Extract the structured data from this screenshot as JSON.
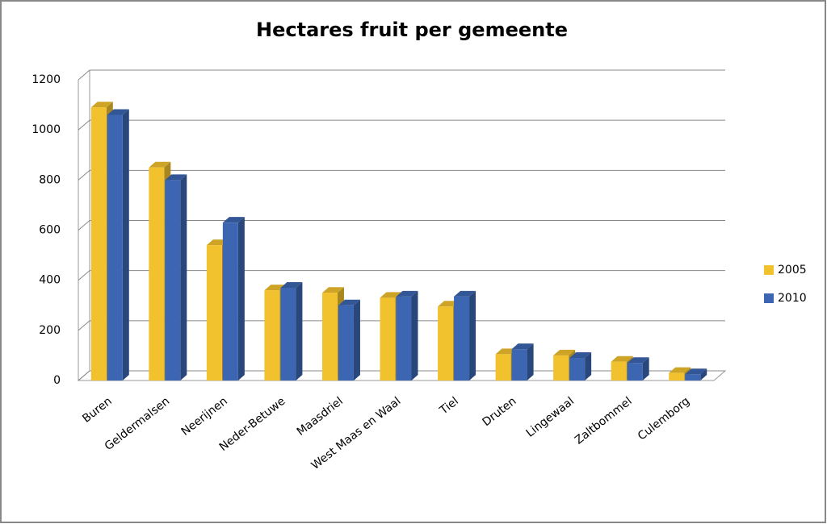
{
  "chart_data": {
    "type": "bar3d",
    "title": "Hectares fruit per gemeente",
    "categories": [
      "Buren",
      "Geldermalsen",
      "Neerijnen",
      "Neder-Betuwe",
      "Maasdriel",
      "West Maas en Waal",
      "Tiel",
      "Druten",
      "Lingewaal",
      "Zaltbommel",
      "Culemborg"
    ],
    "series": [
      {
        "name": "2005",
        "color": "#f2c12e",
        "values": [
          1090,
          850,
          540,
          360,
          350,
          330,
          295,
          105,
          100,
          75,
          30
        ]
      },
      {
        "name": "2010",
        "color": "#3c66b1",
        "values": [
          1060,
          800,
          630,
          370,
          300,
          335,
          335,
          125,
          90,
          70,
          25
        ]
      }
    ],
    "ylim": [
      0,
      1200
    ],
    "yticks": [
      0,
      200,
      400,
      600,
      800,
      1000,
      1200
    ],
    "grid": true,
    "legend": "right"
  }
}
